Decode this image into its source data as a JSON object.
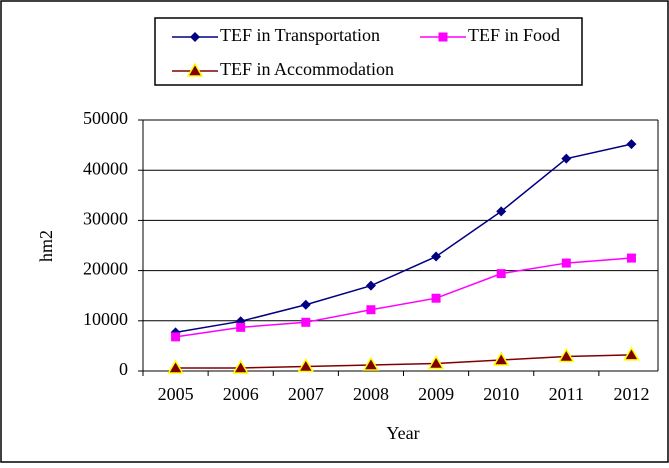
{
  "chart_data": {
    "type": "line",
    "x_label": "Year",
    "y_label": "hm2",
    "categories": [
      "2005",
      "2006",
      "2007",
      "2008",
      "2009",
      "2010",
      "2011",
      "2012"
    ],
    "series": [
      {
        "name": "TEF in Transportation",
        "color": "#000080",
        "marker": "diamond",
        "values": [
          7700,
          9900,
          13200,
          17000,
          22800,
          31800,
          42300,
          45200
        ]
      },
      {
        "name": "TEF in Food",
        "color": "#ff00ff",
        "marker": "square",
        "values": [
          6800,
          8700,
          9700,
          12200,
          14500,
          19400,
          21500,
          22500
        ]
      },
      {
        "name": "TEF in Accommodation",
        "color": "#800000",
        "marker": "triangle",
        "values": [
          600,
          600,
          900,
          1200,
          1500,
          2200,
          2900,
          3200
        ]
      }
    ],
    "ylim": [
      0,
      50000
    ],
    "yticks": [
      0,
      10000,
      20000,
      30000,
      40000,
      50000
    ],
    "grid": true
  }
}
